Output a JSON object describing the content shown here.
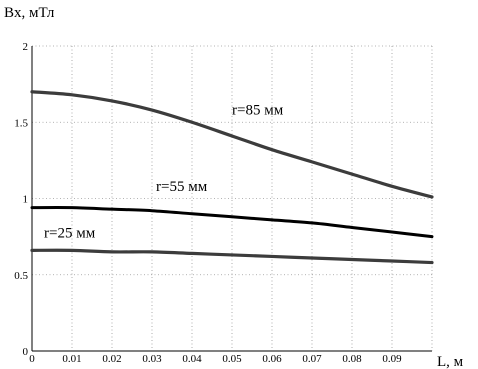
{
  "chart_data": {
    "type": "line",
    "title": "",
    "ylabel": "Bx, мТл",
    "xlabel": "L, м",
    "xlim": [
      0,
      0.1
    ],
    "ylim": [
      0,
      2
    ],
    "grid": true,
    "x_ticks": [
      {
        "value": 0,
        "label": "0"
      },
      {
        "value": 0.01,
        "label": "0.01"
      },
      {
        "value": 0.02,
        "label": "0.02"
      },
      {
        "value": 0.03,
        "label": "0.03"
      },
      {
        "value": 0.04,
        "label": "0.04"
      },
      {
        "value": 0.05,
        "label": "0.05"
      },
      {
        "value": 0.06,
        "label": "0.06"
      },
      {
        "value": 0.07,
        "label": "0.07"
      },
      {
        "value": 0.08,
        "label": "0.08"
      },
      {
        "value": 0.09,
        "label": "0.09"
      },
      {
        "value": 0.1,
        "label": ""
      }
    ],
    "y_ticks": [
      {
        "value": 0,
        "label": "0"
      },
      {
        "value": 0.5,
        "label": "0.5"
      },
      {
        "value": 1,
        "label": "1"
      },
      {
        "value": 1.5,
        "label": "1.5"
      },
      {
        "value": 2,
        "label": "2"
      }
    ],
    "x": [
      0,
      0.01,
      0.02,
      0.03,
      0.04,
      0.05,
      0.06,
      0.07,
      0.08,
      0.09,
      0.1
    ],
    "series": [
      {
        "name": "r=85 мм",
        "color": "#3c3c3c",
        "label_at": [
          0.05,
          1.55
        ],
        "values": [
          1.7,
          1.68,
          1.64,
          1.58,
          1.5,
          1.41,
          1.32,
          1.24,
          1.16,
          1.08,
          1.01
        ]
      },
      {
        "name": "r=55 мм",
        "color": "#000000",
        "label_at": [
          0.031,
          1.05
        ],
        "values": [
          0.94,
          0.94,
          0.93,
          0.92,
          0.9,
          0.88,
          0.86,
          0.84,
          0.81,
          0.78,
          0.75
        ]
      },
      {
        "name": "r=25 мм",
        "color": "#3c3c3c",
        "label_at": [
          0.003,
          0.745
        ],
        "values": [
          0.66,
          0.66,
          0.65,
          0.65,
          0.64,
          0.63,
          0.62,
          0.61,
          0.6,
          0.59,
          0.58
        ]
      }
    ]
  }
}
